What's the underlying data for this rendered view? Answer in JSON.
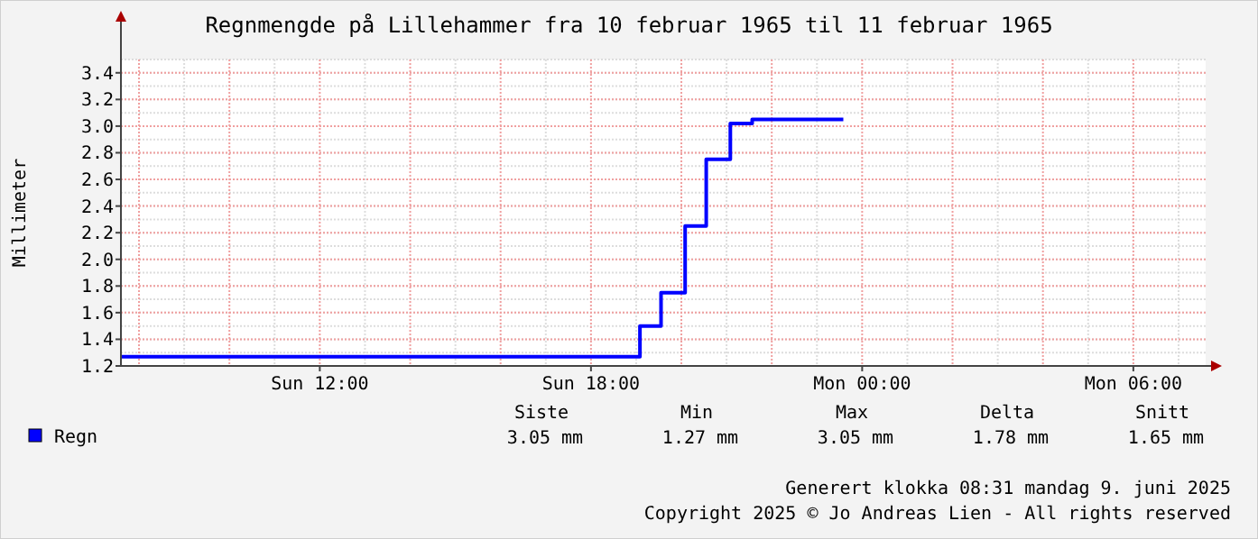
{
  "chart_data": {
    "type": "step",
    "title": "Regnmengde på Lillehammer fra 10 februar 1965 til 11 februar 1965",
    "ylabel": "Millimeter",
    "x": [
      "1965-02-10T07:36",
      "1965-02-10T19:05",
      "1965-02-10T19:33",
      "1965-02-10T20:05",
      "1965-02-10T20:33",
      "1965-02-10T21:05",
      "1965-02-10T21:34",
      "1965-02-10T23:35"
    ],
    "series": [
      {
        "name": "Regn",
        "color": "#0000ff",
        "values": [
          1.27,
          1.5,
          1.75,
          2.25,
          2.75,
          3.02,
          3.05,
          3.05
        ]
      }
    ],
    "xlim": [
      "1965-02-10T07:36",
      "1965-02-11T07:36"
    ],
    "xticks": [
      {
        "value": "1965-02-10T12:00",
        "label": "Sun 12:00"
      },
      {
        "value": "1965-02-10T18:00",
        "label": "Sun 18:00"
      },
      {
        "value": "1965-02-11T00:00",
        "label": "Mon 00:00"
      },
      {
        "value": "1965-02-11T06:00",
        "label": "Mon 06:00"
      }
    ],
    "ylim": [
      1.2,
      3.5
    ],
    "yticks": [
      {
        "value": 1.2,
        "label": "1.2"
      },
      1.4,
      1.6,
      1.8,
      {
        "value": 2,
        "label": "2.0"
      },
      2.2,
      2.4,
      2.6,
      2.8,
      {
        "value": 3,
        "label": "3.0"
      },
      3.2,
      3.4
    ],
    "grid": true,
    "legend": "bottom left",
    "annotations": [
      "Siste",
      "Min",
      "Max",
      "Delta",
      "Snitt",
      "3.05 mm",
      "1.27 mm",
      "3.05 mm",
      "1.78 mm",
      "1.65 mm",
      "Generert klokka 08:31 mandag 9. juni 2025",
      "Copyright 2025 © Jo Andreas Lien - All rights reserved"
    ]
  }
}
